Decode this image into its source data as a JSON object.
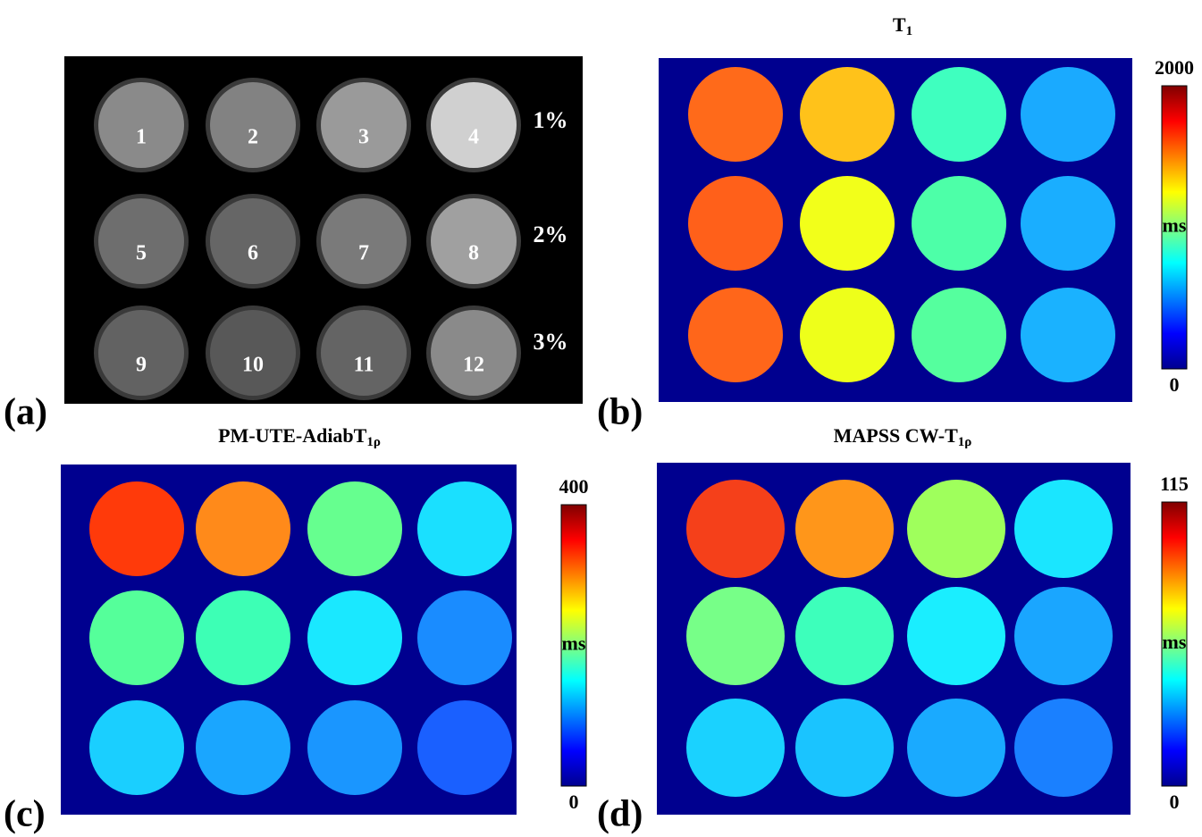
{
  "panels": [
    {
      "label": "(a)",
      "circle_labels": [
        "1",
        "2",
        "3",
        "4",
        "5",
        "6",
        "7",
        "8",
        "9",
        "10",
        "11",
        "12"
      ],
      "row_labels": [
        "1%",
        "2%",
        "3%"
      ]
    },
    {
      "label": "(b)",
      "title": "T",
      "title_sub": "1",
      "colorbar": {
        "max": 2000,
        "unit": "ms",
        "min": 0
      }
    },
    {
      "label": "(c)",
      "title": "PM-UTE-AdiabT",
      "title_sub": "1ρ",
      "colorbar": {
        "max": 400,
        "unit": "ms",
        "min": 0
      }
    },
    {
      "label": "(d)",
      "title": "MAPSS CW-T",
      "title_sub": "1ρ",
      "colorbar": {
        "max": 115,
        "unit": "ms",
        "min": 0
      }
    }
  ]
}
